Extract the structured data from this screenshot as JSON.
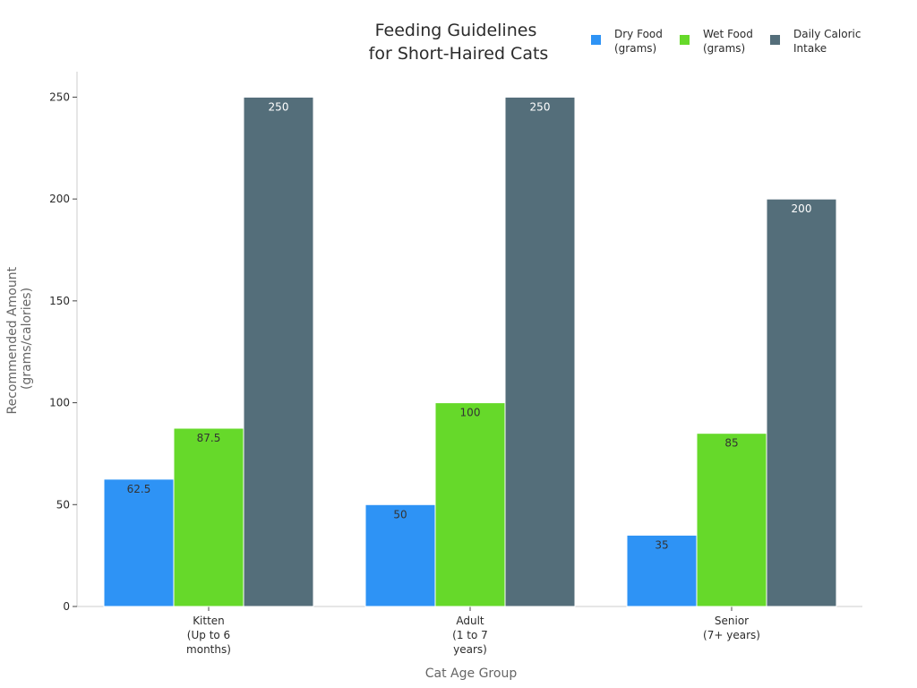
{
  "chart_data": {
    "type": "bar",
    "title": [
      "Feeding Guidelines",
      "for Short-Haired Cats"
    ],
    "xlabel": "Cat Age Group",
    "ylabel": [
      "Recommended Amount",
      "(grams/calories)"
    ],
    "ylim": [
      0,
      262.5
    ],
    "yticks": [
      0,
      50,
      100,
      150,
      200,
      250
    ],
    "categories": [
      [
        "Kitten",
        "(Up to 6",
        "months)"
      ],
      [
        "Adult",
        "(1 to 7",
        "years)"
      ],
      [
        "Senior",
        "(7+ years)"
      ]
    ],
    "series": [
      {
        "name": [
          "Dry Food",
          "(grams)"
        ],
        "values": [
          62.5,
          50,
          35
        ],
        "color": "#2e93f5",
        "label_color": "#333333"
      },
      {
        "name": [
          "Wet Food",
          "(grams)"
        ],
        "values": [
          87.5,
          100,
          85
        ],
        "color": "#66d92a",
        "label_color": "#333333"
      },
      {
        "name": [
          "Daily Caloric",
          "Intake"
        ],
        "values": [
          250,
          250,
          200
        ],
        "color": "#546e7a",
        "label_color": "#ffffff"
      }
    ],
    "legend_position": "top-right",
    "grid": false
  }
}
